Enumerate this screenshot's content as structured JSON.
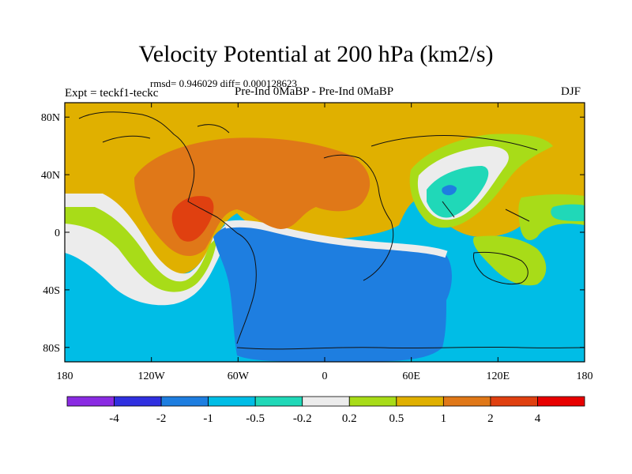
{
  "figure": {
    "title": "Velocity Potential at 200 hPa (km2/s)",
    "stats": "rmsd= 0.946029 diff= 0.000128623",
    "left_label": "Expt = teckf1-teckc",
    "center_label": "Pre-Ind 0MaBP - Pre-Ind 0MaBP",
    "right_label": "DJF"
  },
  "map": {
    "projection": "cylindrical equidistant",
    "lon_range": [
      -180,
      180
    ],
    "lat_range": [
      -90,
      90
    ],
    "lat_ticks": [
      {
        "lat": 80,
        "label": "80N"
      },
      {
        "lat": 40,
        "label": "40N"
      },
      {
        "lat": 0,
        "label": "0"
      },
      {
        "lat": -40,
        "label": "40S"
      },
      {
        "lat": -80,
        "label": "80S"
      }
    ],
    "lon_ticks": [
      {
        "lon": -180,
        "label": "180"
      },
      {
        "lon": -120,
        "label": "120W"
      },
      {
        "lon": -60,
        "label": "60W"
      },
      {
        "lon": 0,
        "label": "0"
      },
      {
        "lon": 60,
        "label": "60E"
      },
      {
        "lon": 120,
        "label": "120E"
      },
      {
        "lon": 180,
        "label": "180"
      }
    ]
  },
  "colorbar": {
    "labels": [
      "-4",
      "-2",
      "-1",
      "-0.5",
      "-0.2",
      "0.2",
      "0.5",
      "1",
      "2",
      "4"
    ],
    "colors": [
      "#8a2be2",
      "#3030e0",
      "#1e7ee0",
      "#00bde6",
      "#20d8b8",
      "#ececec",
      "#a8dc18",
      "#e0b000",
      "#e07818",
      "#e04010",
      "#e80000"
    ]
  }
}
